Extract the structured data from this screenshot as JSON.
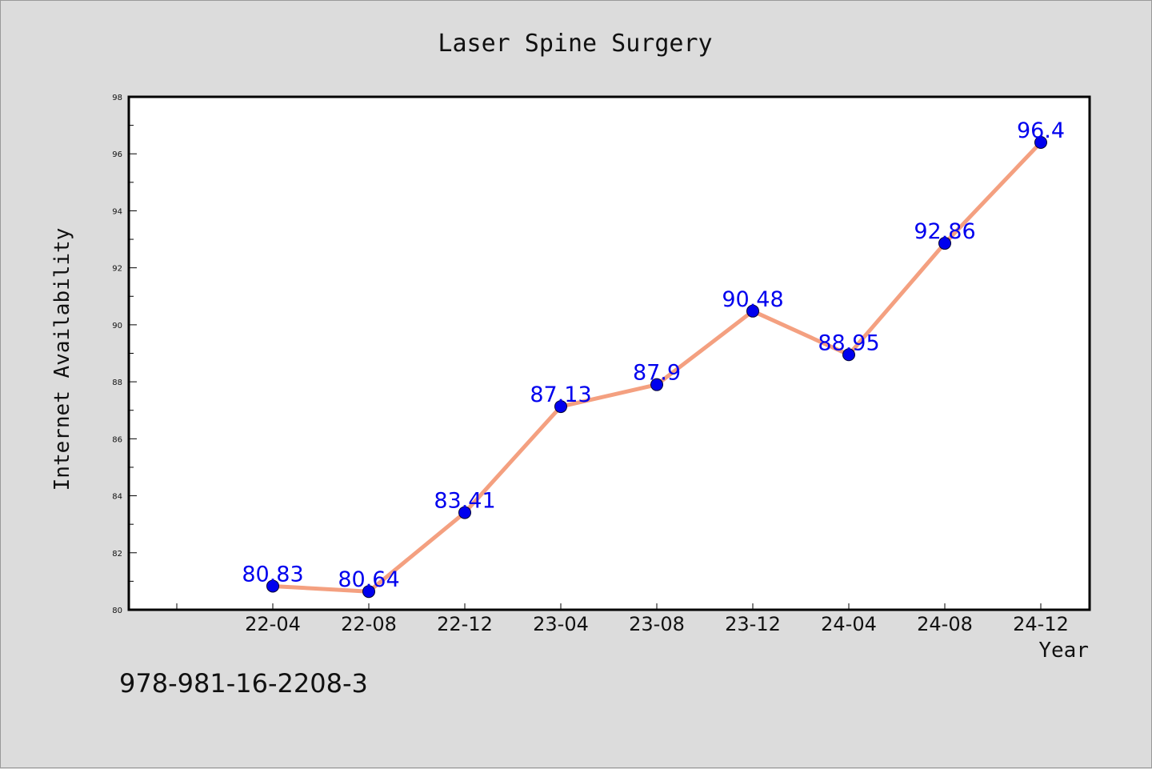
{
  "chart_data": {
    "type": "line",
    "title": "Laser Spine Surgery",
    "xlabel": "Year",
    "ylabel": "Internet Availability",
    "categories": [
      "22-04",
      "22-08",
      "22-12",
      "23-04",
      "23-08",
      "23-12",
      "24-04",
      "24-08",
      "24-12"
    ],
    "series": [
      {
        "values": [
          80.83,
          80.64,
          83.41,
          87.13,
          87.9,
          90.48,
          88.95,
          92.86,
          96.4
        ]
      }
    ],
    "data_labels": [
      "80.83",
      "80.64",
      "83.41",
      "87.13",
      "87.9",
      "90.48",
      "88.95",
      "92.86",
      "96.4"
    ],
    "ylim": [
      80,
      98
    ],
    "y_ticks": [
      "80",
      "82",
      "84",
      "86",
      "88",
      "90",
      "92",
      "94",
      "96",
      "98"
    ],
    "grid": false,
    "legend": "none",
    "colors": {
      "line": "#f4a080",
      "marker": "#0000ee",
      "label": "#0000ee",
      "background": "#dcdcdc",
      "plot_background": "#ffffff"
    }
  },
  "footer": {
    "code": "978-981-16-2208-3"
  }
}
